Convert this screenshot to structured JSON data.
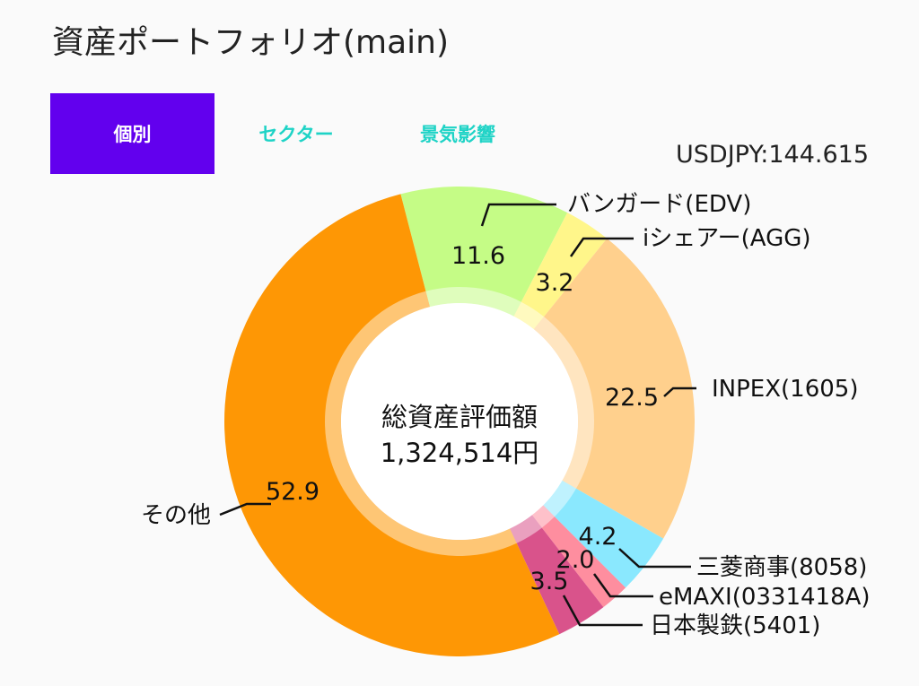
{
  "header": {
    "title": "資産ポートフォリオ(main)"
  },
  "tabs": [
    {
      "label": "個別",
      "active": true
    },
    {
      "label": "セクター",
      "active": false
    },
    {
      "label": "景気影響",
      "active": false
    }
  ],
  "rate": {
    "text": "USDJPY:144.615"
  },
  "center": {
    "title": "総資産評価額",
    "value": "1,324,514円"
  },
  "colors": {
    "accent": "#6200ee",
    "tab_text": "#1ed3c6"
  },
  "chart_data": {
    "type": "pie",
    "slices": [
      {
        "label": "バンガード(EDV)",
        "value": 11.6,
        "value_label": "11.6",
        "color": "#c5fc86"
      },
      {
        "label": "iシェアー(AGG)",
        "value": 3.2,
        "value_label": "3.2",
        "color": "#fff68a"
      },
      {
        "label": "INPEX(1605)",
        "value": 22.5,
        "value_label": "22.5",
        "color": "#ffd08d"
      },
      {
        "label": "三菱商事(8058)",
        "value": 4.2,
        "value_label": "4.2",
        "color": "#8ae8fe"
      },
      {
        "label": "eMAXI(0331418A)",
        "value": 2.0,
        "value_label": "2.0",
        "color": "#fe8e9f"
      },
      {
        "label": "日本製鉄(5401)",
        "value": 3.5,
        "value_label": "3.5",
        "color": "#d9538b"
      },
      {
        "label": "その他",
        "value": 52.9,
        "value_label": "52.9",
        "color": "#fe9705"
      }
    ]
  }
}
